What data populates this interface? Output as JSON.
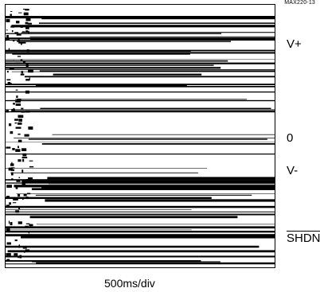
{
  "figure_id": "MAX220-13",
  "chart_data": {
    "type": "line",
    "title": "",
    "xlabel": "500ms/div",
    "ylabel": "",
    "trace_labels": [
      {
        "text": "V+",
        "overbar": false
      },
      {
        "text": "0",
        "overbar": false
      },
      {
        "text": "V-",
        "overbar": false
      },
      {
        "text": "SHDN",
        "overbar": true
      }
    ],
    "grid": false,
    "background": "#ffffff",
    "trace_color": "#000000"
  }
}
